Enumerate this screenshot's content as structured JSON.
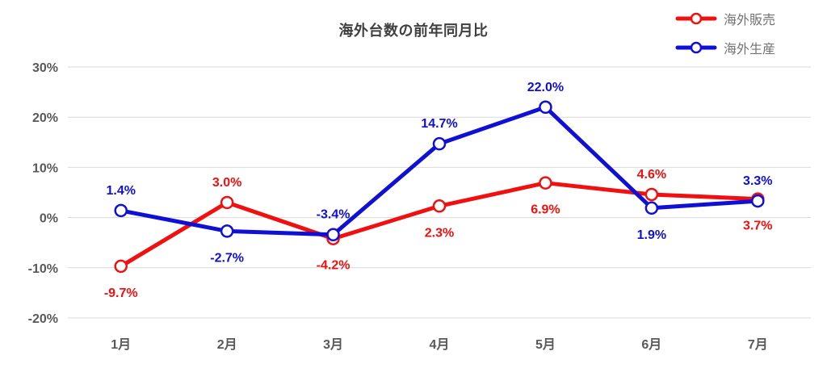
{
  "title": "海外台数の前年同月比",
  "chart_data": {
    "type": "line",
    "title": "海外台数の前年同月比",
    "categories": [
      "1月",
      "2月",
      "3月",
      "4月",
      "5月",
      "6月",
      "7月"
    ],
    "series": [
      {
        "name": "海外販売",
        "color": "#f01010",
        "values": [
          -9.7,
          3.0,
          -4.2,
          2.3,
          6.9,
          4.6,
          3.7
        ],
        "labels": [
          "-9.7%",
          "3.0%",
          "-4.2%",
          "2.3%",
          "6.9%",
          "4.6%",
          "3.7%"
        ],
        "label_positions": [
          "below",
          "above",
          "below",
          "below",
          "below",
          "above",
          "below"
        ]
      },
      {
        "name": "海外生産",
        "color": "#0f0fd6",
        "values": [
          1.4,
          -2.7,
          -3.4,
          14.7,
          22.0,
          1.9,
          3.3
        ],
        "labels": [
          "1.4%",
          "-2.7%",
          "-3.4%",
          "14.7%",
          "22.0%",
          "1.9%",
          "3.3%"
        ],
        "label_positions": [
          "above",
          "below",
          "above",
          "above",
          "above",
          "below",
          "above"
        ]
      }
    ],
    "ylim": [
      -20,
      30
    ],
    "yticks": [
      {
        "value": 30,
        "label": "30%"
      },
      {
        "value": 20,
        "label": "20%"
      },
      {
        "value": 10,
        "label": "10%"
      },
      {
        "value": 0,
        "label": "0%"
      },
      {
        "value": -10,
        "label": "-10%"
      },
      {
        "value": -20,
        "label": "-20%"
      }
    ],
    "grid": true,
    "grid_color": "#d9d9d9",
    "text_color": "#595959",
    "legend_position": "top-right",
    "marker": "circle-white-fill"
  }
}
